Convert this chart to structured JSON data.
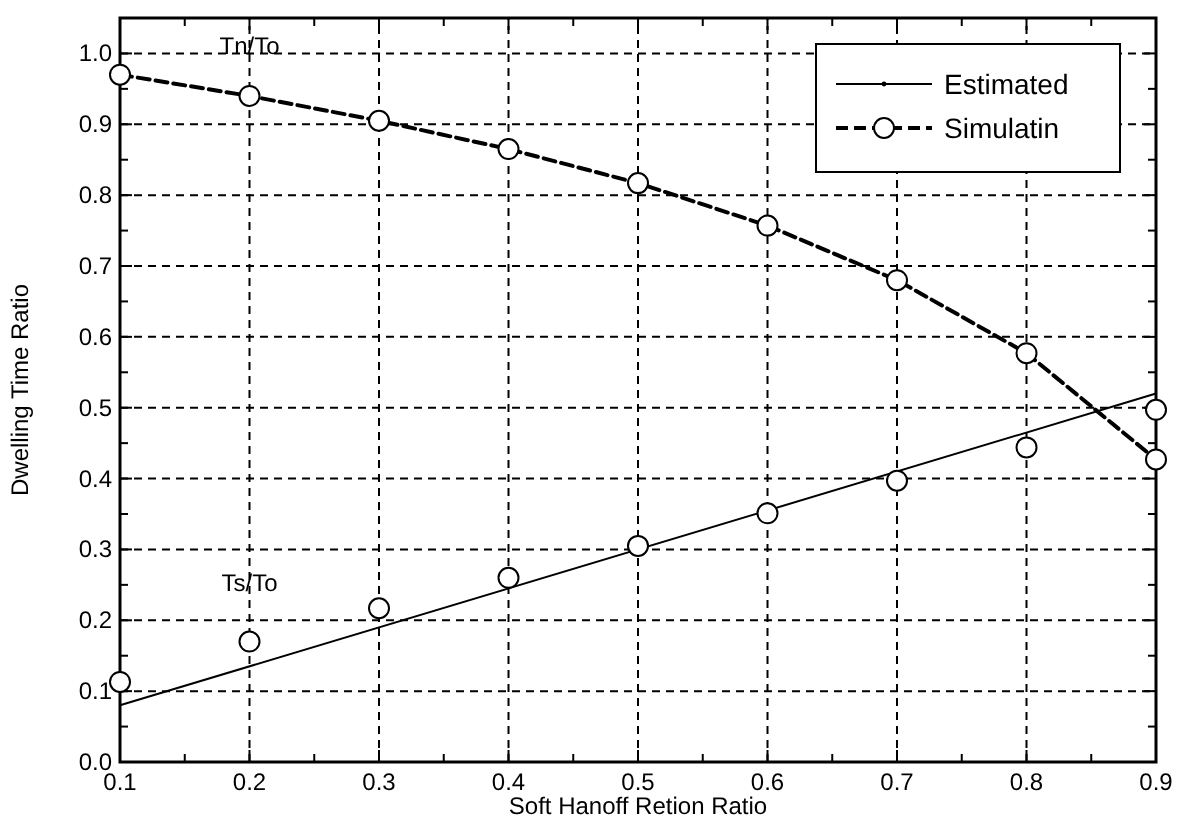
{
  "chart_data": {
    "type": "line",
    "xlabel": "Soft Hanoff Retion Ratio",
    "ylabel": "Dwelling Time Ratio",
    "xlim": [
      0.1,
      0.9
    ],
    "ylim": [
      0,
      1.05
    ],
    "xticks": [
      0.1,
      {
        "value": 0.15,
        "label": null
      },
      0.2,
      {
        "value": 0.25,
        "label": null
      },
      0.3,
      {
        "value": 0.35,
        "label": null
      },
      0.4,
      {
        "value": 0.45,
        "label": null
      },
      0.5,
      {
        "value": 0.55,
        "label": null
      },
      0.6,
      {
        "value": 0.65,
        "label": null
      },
      0.7,
      {
        "value": 0.75,
        "label": null
      },
      0.8,
      {
        "value": 0.85,
        "label": null
      },
      0.9
    ],
    "yticks": [
      {
        "value": 0,
        "label": "0.0"
      },
      {
        "value": 0.05,
        "label": null
      },
      0.1,
      {
        "value": 0.15,
        "label": null
      },
      0.2,
      {
        "value": 0.25,
        "label": null
      },
      0.3,
      {
        "value": 0.35,
        "label": null
      },
      0.4,
      {
        "value": 0.45,
        "label": null
      },
      0.5,
      {
        "value": 0.55,
        "label": null
      },
      0.6,
      {
        "value": 0.65,
        "label": null
      },
      0.7,
      {
        "value": 0.75,
        "label": null
      },
      0.8,
      {
        "value": 0.85,
        "label": null
      },
      0.9,
      {
        "value": 0.95,
        "label": null
      },
      {
        "value": 1,
        "label": "1.0"
      }
    ],
    "grid": true,
    "legend": "top right",
    "series": [
      {
        "name": "Estimated",
        "color": "#000000",
        "x": [
          0.1,
          0.9
        ],
        "values": [
          0.08,
          0.52
        ],
        "line_style": "solid",
        "marker": "none"
      },
      {
        "name": "Simulatin",
        "color": "#000000",
        "x": [
          0.1,
          0.2,
          0.3,
          0.4,
          0.5,
          0.6,
          0.7,
          0.8,
          0.9
        ],
        "values": [
          0.97,
          0.94,
          0.905,
          0.865,
          0.817,
          0.757,
          0.68,
          0.577,
          0.427
        ],
        "line_style": "dashed",
        "marker": "circle"
      },
      {
        "type": "scatter",
        "color": "#000000",
        "x": [
          0.1,
          0.2,
          0.3,
          0.4,
          0.5,
          0.6,
          0.7,
          0.8,
          0.9
        ],
        "values": [
          0.113,
          0.17,
          0.217,
          0.26,
          0.305,
          0.351,
          0.397,
          0.444,
          0.497
        ],
        "marker": "circle"
      }
    ],
    "annotations": [
      "Tn/To",
      "Ts/To"
    ]
  }
}
